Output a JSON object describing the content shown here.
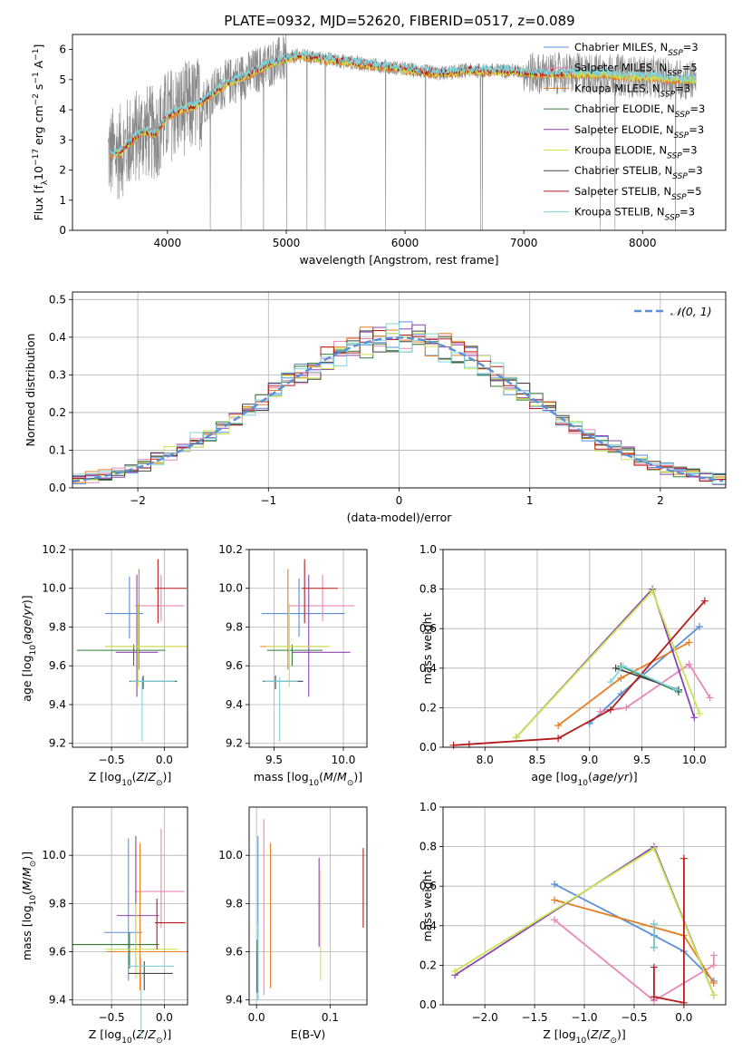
{
  "figure_title": "PLATE=0932, MJD=52620, FIBERID=0517, z=0.089",
  "colors": {
    "Chabrier MILES": "#5b8fd8",
    "Salpeter MILES": "#e987b6",
    "Kroupa MILES": "#e67e22",
    "Chabrier ELODIE": "#2e7d32",
    "Salpeter ELODIE": "#8e44ad",
    "Kroupa ELODIE": "#c8e650",
    "Chabrier STELIB": "#444444",
    "Salpeter STELIB": "#b71c1c",
    "Kroupa STELIB": "#7fd3dd",
    "data": "#888888",
    "normal": "#5b8fd8"
  },
  "chart_data": [
    {
      "id": "spectrum",
      "type": "line",
      "xlabel": "wavelength [Angstrom, rest frame]",
      "ylabel_parts": [
        "Flux [f",
        "λ",
        "10",
        "−17",
        " erg cm",
        "−2",
        " s",
        "−1",
        " A",
        "−1",
        "]"
      ],
      "xlim": [
        3200,
        8700
      ],
      "ylim": [
        0,
        6.5
      ],
      "xticks": [
        4000,
        5000,
        6000,
        7000,
        8000
      ],
      "yticks": [
        0,
        1,
        2,
        3,
        4,
        5,
        6
      ],
      "grid": false,
      "legend_position": "right",
      "legend": [
        {
          "model": "Chabrier MILES",
          "nssp": "3"
        },
        {
          "model": "Salpeter MILES",
          "nssp": "5"
        },
        {
          "model": "Kroupa MILES",
          "nssp": "3"
        },
        {
          "model": "Chabrier ELODIE",
          "nssp": "3"
        },
        {
          "model": "Salpeter ELODIE",
          "nssp": "3"
        },
        {
          "model": "Kroupa ELODIE",
          "nssp": "3"
        },
        {
          "model": "Chabrier STELIB",
          "nssp": "3"
        },
        {
          "model": "Salpeter STELIB",
          "nssp": "5"
        },
        {
          "model": "Kroupa STELIB",
          "nssp": "3"
        }
      ],
      "legend_nssp_prefix": "N",
      "legend_nssp_sub": "SSP",
      "continuum": {
        "wavelength": [
          3500,
          3600,
          3700,
          3800,
          3900,
          4000,
          4100,
          4200,
          4300,
          4400,
          4500,
          4700,
          4900,
          5100,
          5300,
          5500,
          5700,
          5900,
          6100,
          6300,
          6500,
          6700,
          6900,
          7100,
          7300,
          7500,
          7700,
          7900,
          8100,
          8300,
          8500
        ],
        "flux": [
          2.5,
          2.6,
          3.0,
          3.3,
          3.2,
          3.8,
          4.0,
          4.1,
          4.3,
          4.6,
          4.9,
          5.2,
          5.6,
          5.8,
          5.7,
          5.6,
          5.5,
          5.4,
          5.3,
          5.2,
          5.3,
          5.3,
          5.3,
          5.2,
          5.2,
          5.2,
          5.2,
          5.1,
          5.1,
          5.0,
          5.0
        ]
      }
    },
    {
      "id": "residuals",
      "type": "line",
      "xlabel": "(data-model)/error",
      "ylabel": "Normed distribution",
      "xlim": [
        -2.5,
        2.5
      ],
      "ylim": [
        0,
        0.52
      ],
      "xticks": [
        -2,
        -1,
        0,
        1,
        2
      ],
      "xtick_labels": [
        "−2",
        "−1",
        "0",
        "1",
        "2"
      ],
      "yticks": [
        0.0,
        0.1,
        0.2,
        0.3,
        0.4,
        0.5
      ],
      "ytick_labels": [
        "0.0",
        "0.1",
        "0.2",
        "0.3",
        "0.4",
        "0.5"
      ],
      "grid": true,
      "legend_position": "top-right",
      "normal_curve": {
        "name": "𝒩(0, 1)",
        "mean": 0,
        "sigma": 1
      }
    },
    {
      "id": "z_age",
      "type": "scatter",
      "xlabel": "Z [log10(Z/Z⊙)]",
      "ylabel": "age  [log10(age/yr)]",
      "xlim": [
        -0.87,
        0.22
      ],
      "ylim": [
        9.18,
        10.2
      ],
      "xticks": [
        -0.5,
        0.0
      ],
      "xtick_labels": [
        "−0.5",
        "0.0"
      ],
      "yticks": [
        9.2,
        9.4,
        9.6,
        9.8,
        10.0,
        10.2
      ],
      "ytick_labels": [
        "9.2",
        "9.4",
        "9.6",
        "9.8",
        "10.0",
        "10.2"
      ],
      "grid": true,
      "points": [
        {
          "model": "Chabrier MILES",
          "x": -0.33,
          "xerr": [
            0.23,
            0.13
          ],
          "y": 9.87,
          "yerr": [
            0.13,
            0.19
          ]
        },
        {
          "model": "Salpeter MILES",
          "x": -0.03,
          "xerr": [
            0.25,
            0.22
          ],
          "y": 9.91,
          "yerr": [
            0.08,
            0.16
          ]
        },
        {
          "model": "Kroupa MILES",
          "x": -0.24,
          "xerr": [
            0.32,
            0.46
          ],
          "y": 9.7,
          "yerr": [
            0.12,
            0.4
          ]
        },
        {
          "model": "Chabrier ELODIE",
          "x": -0.29,
          "xerr": [
            0.54,
            0.3
          ],
          "y": 9.68,
          "yerr": [
            0.08,
            0.03
          ]
        },
        {
          "model": "Salpeter ELODIE",
          "x": -0.26,
          "xerr": [
            0.2,
            0.2
          ],
          "y": 9.67,
          "yerr": [
            0.23,
            0.4
          ]
        },
        {
          "model": "Kroupa ELODIE",
          "x": -0.25,
          "xerr": [
            0.31,
            0.46
          ],
          "y": 9.7,
          "yerr": [
            0.21,
            0.22
          ]
        },
        {
          "model": "Chabrier STELIB",
          "x": -0.2,
          "xerr": [
            0.13,
            0.32
          ],
          "y": 9.52,
          "yerr": [
            0.04,
            0.03
          ]
        },
        {
          "model": "Salpeter STELIB",
          "x": -0.06,
          "xerr": [
            0.03,
            0.27
          ],
          "y": 10.0,
          "yerr": [
            0.18,
            0.15
          ]
        },
        {
          "model": "Kroupa STELIB",
          "x": -0.21,
          "xerr": [
            0.11,
            0.31
          ],
          "y": 9.52,
          "yerr": [
            0.31,
            0.02
          ]
        }
      ]
    },
    {
      "id": "mass_age",
      "type": "scatter",
      "xlabel": "mass [log10(M/M⊙)]",
      "ylabel": "",
      "xlim": [
        9.32,
        10.17
      ],
      "ylim": [
        9.18,
        10.2
      ],
      "xticks": [
        9.5,
        10.0
      ],
      "xtick_labels": [
        "9.5",
        "10.0"
      ],
      "yticks": [
        9.2,
        9.4,
        9.6,
        9.8,
        10.0,
        10.2
      ],
      "ytick_labels": [
        "9.2",
        "9.4",
        "9.6",
        "9.8",
        "10.0",
        "10.2"
      ],
      "grid": true,
      "points": [
        {
          "model": "Chabrier MILES",
          "x": 9.68,
          "xerr": [
            0.27,
            0.33
          ],
          "y": 9.87,
          "yerr": [
            0.12,
            0.18
          ]
        },
        {
          "model": "Salpeter MILES",
          "x": 9.85,
          "xerr": [
            0.24,
            0.23
          ],
          "y": 9.91,
          "yerr": [
            0.08,
            0.16
          ]
        },
        {
          "model": "Kroupa MILES",
          "x": 9.6,
          "xerr": [
            0.2,
            0.29
          ],
          "y": 9.7,
          "yerr": [
            0.12,
            0.4
          ]
        },
        {
          "model": "Chabrier ELODIE",
          "x": 9.63,
          "xerr": [
            0.18,
            0.22
          ],
          "y": 9.68,
          "yerr": [
            0.08,
            0.03
          ]
        },
        {
          "model": "Salpeter ELODIE",
          "x": 9.75,
          "xerr": [
            0.12,
            0.3
          ],
          "y": 9.67,
          "yerr": [
            0.23,
            0.4
          ]
        },
        {
          "model": "Kroupa ELODIE",
          "x": 9.61,
          "xerr": [
            0.17,
            0.3
          ],
          "y": 9.7,
          "yerr": [
            0.21,
            0.22
          ]
        },
        {
          "model": "Chabrier STELIB",
          "x": 9.51,
          "xerr": [
            0.09,
            0.2
          ],
          "y": 9.52,
          "yerr": [
            0.04,
            0.03
          ]
        },
        {
          "model": "Salpeter STELIB",
          "x": 9.72,
          "xerr": [
            0.02,
            0.24
          ],
          "y": 10.0,
          "yerr": [
            0.18,
            0.15
          ]
        },
        {
          "model": "Kroupa STELIB",
          "x": 9.54,
          "xerr": [
            0.11,
            0.13
          ],
          "y": 9.52,
          "yerr": [
            0.31,
            0.02
          ]
        }
      ]
    },
    {
      "id": "age_weight",
      "type": "line",
      "xlabel": "age  [log10(age/yr)]",
      "ylabel": "mass weight",
      "xlim": [
        7.6,
        10.3
      ],
      "ylim": [
        0,
        1.0
      ],
      "xticks": [
        8.0,
        8.5,
        9.0,
        9.5,
        10.0
      ],
      "xtick_labels": [
        "8.0",
        "8.5",
        "9.0",
        "9.5",
        "10.0"
      ],
      "yticks": [
        0.0,
        0.2,
        0.4,
        0.6,
        0.8,
        1.0
      ],
      "ytick_labels": [
        "0.0",
        "0.2",
        "0.4",
        "0.6",
        "0.8",
        "1.0"
      ],
      "grid": true,
      "series": [
        {
          "model": "Chabrier MILES",
          "x": [
            9.0,
            9.3,
            10.05
          ],
          "y": [
            0.12,
            0.27,
            0.61
          ]
        },
        {
          "model": "Salpeter MILES",
          "x": [
            9.1,
            9.35,
            9.95,
            10.15
          ],
          "y": [
            0.18,
            0.2,
            0.42,
            0.25
          ]
        },
        {
          "model": "Kroupa MILES",
          "x": [
            8.7,
            9.3,
            9.95
          ],
          "y": [
            0.11,
            0.35,
            0.53
          ]
        },
        {
          "model": "Chabrier ELODIE",
          "x": [
            9.3,
            9.85
          ],
          "y": [
            0.41,
            0.28
          ]
        },
        {
          "model": "Salpeter ELODIE",
          "x": [
            8.3,
            9.6,
            10.0
          ],
          "y": [
            0.05,
            0.8,
            0.15
          ]
        },
        {
          "model": "Kroupa ELODIE",
          "x": [
            8.3,
            9.6,
            10.05
          ],
          "y": [
            0.05,
            0.79,
            0.17
          ]
        },
        {
          "model": "Chabrier STELIB",
          "x": [
            9.25,
            9.85
          ],
          "y": [
            0.4,
            0.29
          ]
        },
        {
          "model": "Salpeter STELIB",
          "x": [
            7.7,
            7.85,
            8.7,
            9.2,
            10.1
          ],
          "y": [
            0.01,
            0.015,
            0.045,
            0.19,
            0.74
          ]
        },
        {
          "model": "Kroupa STELIB",
          "x": [
            9.2,
            9.32,
            9.83
          ],
          "y": [
            0.33,
            0.41,
            0.29
          ]
        }
      ]
    },
    {
      "id": "z_mass",
      "type": "scatter",
      "xlabel": "Z [log10(Z/Z⊙)]",
      "ylabel": "mass [log10(M/M⊙)]",
      "xlim": [
        -0.87,
        0.22
      ],
      "ylim": [
        9.38,
        10.2
      ],
      "xticks": [
        -0.5,
        0.0
      ],
      "xtick_labels": [
        "−0.5",
        "0.0"
      ],
      "yticks": [
        9.4,
        9.6,
        9.8,
        10.0
      ],
      "ytick_labels": [
        "9.4",
        "9.6",
        "9.8",
        "10.0"
      ],
      "grid": true,
      "points": [
        {
          "model": "Chabrier MILES",
          "x": -0.34,
          "xerr": [
            0.23,
            0.13
          ],
          "y": 9.68,
          "yerr": [
            0.2,
            0.39
          ]
        },
        {
          "model": "Salpeter MILES",
          "x": -0.03,
          "xerr": [
            0.25,
            0.22
          ],
          "y": 9.85,
          "yerr": [
            0.15,
            0.26
          ]
        },
        {
          "model": "Kroupa MILES",
          "x": -0.23,
          "xerr": [
            0.32,
            0.46
          ],
          "y": 9.6,
          "yerr": [
            0.16,
            0.45
          ]
        },
        {
          "model": "Chabrier ELODIE",
          "x": -0.33,
          "xerr": [
            0.54,
            0.28
          ],
          "y": 9.63,
          "yerr": [
            0.1,
            0.05
          ]
        },
        {
          "model": "Salpeter ELODIE",
          "x": -0.27,
          "xerr": [
            0.18,
            0.22
          ],
          "y": 9.75,
          "yerr": [
            0.22,
            0.33
          ]
        },
        {
          "model": "Kroupa ELODIE",
          "x": -0.27,
          "xerr": [
            0.29,
            0.4
          ],
          "y": 9.61,
          "yerr": [
            0.12,
            0.19
          ]
        },
        {
          "model": "Chabrier STELIB",
          "x": -0.19,
          "xerr": [
            0.15,
            0.27
          ],
          "y": 9.51,
          "yerr": [
            0.07,
            0.05
          ]
        },
        {
          "model": "Salpeter STELIB",
          "x": -0.07,
          "xerr": [
            0.02,
            0.27
          ],
          "y": 9.72,
          "yerr": [
            0.11,
            0.1
          ]
        },
        {
          "model": "Kroupa STELIB",
          "x": -0.22,
          "xerr": [
            0.12,
            0.31
          ],
          "y": 9.54,
          "yerr": [
            0.3,
            0.03
          ]
        }
      ]
    },
    {
      "id": "ebv_mass",
      "type": "scatter",
      "xlabel": "E(B-V)",
      "ylabel": "",
      "xlim": [
        -0.01,
        0.15
      ],
      "ylim": [
        9.38,
        10.2
      ],
      "xticks": [
        0.0,
        0.1
      ],
      "xtick_labels": [
        "0.0",
        "0.1"
      ],
      "yticks": [
        9.4,
        9.6,
        9.8,
        10.0
      ],
      "ytick_labels": [
        "9.4",
        "9.6",
        "9.8",
        "10.0"
      ],
      "grid": true,
      "points": [
        {
          "model": "Chabrier MILES",
          "x": 0.002,
          "y": 9.75,
          "yerr": [
            0.35,
            0.33
          ]
        },
        {
          "model": "Salpeter MILES",
          "x": 0.01,
          "y": 9.8,
          "yerr": [
            0.38,
            0.35
          ]
        },
        {
          "model": "Kroupa MILES",
          "x": 0.019,
          "y": 9.7,
          "yerr": [
            0.25,
            0.35
          ]
        },
        {
          "model": "Chabrier ELODIE",
          "x": 0.001,
          "y": 9.55,
          "yerr": [
            0.12,
            0.1
          ]
        },
        {
          "model": "Salpeter ELODIE",
          "x": 0.085,
          "y": 9.82,
          "yerr": [
            0.2,
            0.17
          ]
        },
        {
          "model": "Kroupa ELODIE",
          "x": 0.087,
          "y": 9.72,
          "yerr": [
            0.24,
            0.22
          ]
        },
        {
          "model": "Chabrier STELIB",
          "x": 0.001,
          "y": 9.55,
          "yerr": [
            0.12,
            0.05
          ]
        },
        {
          "model": "Salpeter STELIB",
          "x": 0.145,
          "y": 9.87,
          "yerr": [
            0.17,
            0.16
          ]
        },
        {
          "model": "Kroupa STELIB",
          "x": 0.002,
          "y": 9.57,
          "yerr": [
            0.17,
            0.15
          ]
        }
      ]
    },
    {
      "id": "z_weight",
      "type": "line",
      "xlabel": "Z [log10(Z/Z⊙)]",
      "ylabel": "mass weight",
      "xlim": [
        -2.42,
        0.42
      ],
      "ylim": [
        0,
        1.0
      ],
      "xticks": [
        -2.0,
        -1.5,
        -1.0,
        -0.5,
        0.0
      ],
      "xtick_labels": [
        "−2.0",
        "−1.5",
        "−1.0",
        "−0.5",
        "0.0"
      ],
      "yticks": [
        0.0,
        0.2,
        0.4,
        0.6,
        0.8,
        1.0
      ],
      "ytick_labels": [
        "0.0",
        "0.2",
        "0.4",
        "0.6",
        "0.8",
        "1.0"
      ],
      "grid": true,
      "series": [
        {
          "model": "Chabrier MILES",
          "x": [
            -1.3,
            -0.3,
            0.0,
            0.3
          ],
          "y": [
            0.61,
            0.35,
            0.27,
            0.12
          ]
        },
        {
          "model": "Salpeter MILES",
          "x": [
            -1.3,
            -0.3,
            0.3,
            0.3
          ],
          "y": [
            0.43,
            0.02,
            0.2,
            0.25
          ]
        },
        {
          "model": "Kroupa MILES",
          "x": [
            -1.3,
            0.0,
            0.3
          ],
          "y": [
            0.53,
            0.35,
            0.11
          ]
        },
        {
          "model": "Chabrier ELODIE",
          "x": [
            -0.3,
            -0.3
          ],
          "y": [
            0.41,
            0.29
          ]
        },
        {
          "model": "Salpeter ELODIE",
          "x": [
            -2.3,
            -0.3,
            0.3
          ],
          "y": [
            0.15,
            0.8,
            0.05
          ]
        },
        {
          "model": "Kroupa ELODIE",
          "x": [
            -2.3,
            -0.3,
            0.3
          ],
          "y": [
            0.17,
            0.79,
            0.05
          ]
        },
        {
          "model": "Chabrier STELIB",
          "x": [
            -0.3,
            -0.3
          ],
          "y": [
            0.41,
            0.29
          ]
        },
        {
          "model": "Salpeter STELIB",
          "x": [
            -0.3,
            -0.3,
            0.0,
            0.0
          ],
          "y": [
            0.19,
            0.04,
            0.01,
            0.74
          ]
        },
        {
          "model": "Kroupa STELIB",
          "x": [
            -0.3,
            -0.3
          ],
          "y": [
            0.41,
            0.29
          ]
        }
      ]
    }
  ]
}
